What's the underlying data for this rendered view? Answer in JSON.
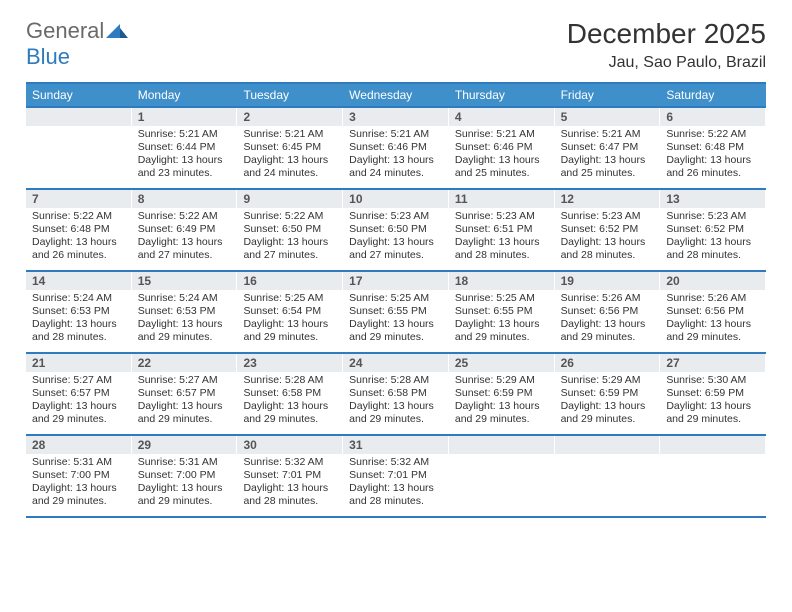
{
  "brand": {
    "general": "General",
    "blue": "Blue"
  },
  "title": "December 2025",
  "location": "Jau, Sao Paulo, Brazil",
  "colors": {
    "accent": "#2f7bbf",
    "header_bg": "#3f8fca",
    "band_bg": "#e9ecef",
    "text": "#333333",
    "logo_gray": "#6a6a6a"
  },
  "layout": {
    "cols": 7,
    "rows": 5,
    "start_day_index": 1,
    "cell_font_size_pt": 8,
    "daynum_font_size_pt": 9,
    "header_font_size_pt": 9,
    "title_font_size_pt": 21,
    "location_font_size_pt": 12
  },
  "day_headers": [
    "Sunday",
    "Monday",
    "Tuesday",
    "Wednesday",
    "Thursday",
    "Friday",
    "Saturday"
  ],
  "weeks": [
    [
      null,
      {
        "n": "1",
        "sunrise": "5:21 AM",
        "sunset": "6:44 PM",
        "daylight": "13 hours and 23 minutes."
      },
      {
        "n": "2",
        "sunrise": "5:21 AM",
        "sunset": "6:45 PM",
        "daylight": "13 hours and 24 minutes."
      },
      {
        "n": "3",
        "sunrise": "5:21 AM",
        "sunset": "6:46 PM",
        "daylight": "13 hours and 24 minutes."
      },
      {
        "n": "4",
        "sunrise": "5:21 AM",
        "sunset": "6:46 PM",
        "daylight": "13 hours and 25 minutes."
      },
      {
        "n": "5",
        "sunrise": "5:21 AM",
        "sunset": "6:47 PM",
        "daylight": "13 hours and 25 minutes."
      },
      {
        "n": "6",
        "sunrise": "5:22 AM",
        "sunset": "6:48 PM",
        "daylight": "13 hours and 26 minutes."
      }
    ],
    [
      {
        "n": "7",
        "sunrise": "5:22 AM",
        "sunset": "6:48 PM",
        "daylight": "13 hours and 26 minutes."
      },
      {
        "n": "8",
        "sunrise": "5:22 AM",
        "sunset": "6:49 PM",
        "daylight": "13 hours and 27 minutes."
      },
      {
        "n": "9",
        "sunrise": "5:22 AM",
        "sunset": "6:50 PM",
        "daylight": "13 hours and 27 minutes."
      },
      {
        "n": "10",
        "sunrise": "5:23 AM",
        "sunset": "6:50 PM",
        "daylight": "13 hours and 27 minutes."
      },
      {
        "n": "11",
        "sunrise": "5:23 AM",
        "sunset": "6:51 PM",
        "daylight": "13 hours and 28 minutes."
      },
      {
        "n": "12",
        "sunrise": "5:23 AM",
        "sunset": "6:52 PM",
        "daylight": "13 hours and 28 minutes."
      },
      {
        "n": "13",
        "sunrise": "5:23 AM",
        "sunset": "6:52 PM",
        "daylight": "13 hours and 28 minutes."
      }
    ],
    [
      {
        "n": "14",
        "sunrise": "5:24 AM",
        "sunset": "6:53 PM",
        "daylight": "13 hours and 28 minutes."
      },
      {
        "n": "15",
        "sunrise": "5:24 AM",
        "sunset": "6:53 PM",
        "daylight": "13 hours and 29 minutes."
      },
      {
        "n": "16",
        "sunrise": "5:25 AM",
        "sunset": "6:54 PM",
        "daylight": "13 hours and 29 minutes."
      },
      {
        "n": "17",
        "sunrise": "5:25 AM",
        "sunset": "6:55 PM",
        "daylight": "13 hours and 29 minutes."
      },
      {
        "n": "18",
        "sunrise": "5:25 AM",
        "sunset": "6:55 PM",
        "daylight": "13 hours and 29 minutes."
      },
      {
        "n": "19",
        "sunrise": "5:26 AM",
        "sunset": "6:56 PM",
        "daylight": "13 hours and 29 minutes."
      },
      {
        "n": "20",
        "sunrise": "5:26 AM",
        "sunset": "6:56 PM",
        "daylight": "13 hours and 29 minutes."
      }
    ],
    [
      {
        "n": "21",
        "sunrise": "5:27 AM",
        "sunset": "6:57 PM",
        "daylight": "13 hours and 29 minutes."
      },
      {
        "n": "22",
        "sunrise": "5:27 AM",
        "sunset": "6:57 PM",
        "daylight": "13 hours and 29 minutes."
      },
      {
        "n": "23",
        "sunrise": "5:28 AM",
        "sunset": "6:58 PM",
        "daylight": "13 hours and 29 minutes."
      },
      {
        "n": "24",
        "sunrise": "5:28 AM",
        "sunset": "6:58 PM",
        "daylight": "13 hours and 29 minutes."
      },
      {
        "n": "25",
        "sunrise": "5:29 AM",
        "sunset": "6:59 PM",
        "daylight": "13 hours and 29 minutes."
      },
      {
        "n": "26",
        "sunrise": "5:29 AM",
        "sunset": "6:59 PM",
        "daylight": "13 hours and 29 minutes."
      },
      {
        "n": "27",
        "sunrise": "5:30 AM",
        "sunset": "6:59 PM",
        "daylight": "13 hours and 29 minutes."
      }
    ],
    [
      {
        "n": "28",
        "sunrise": "5:31 AM",
        "sunset": "7:00 PM",
        "daylight": "13 hours and 29 minutes."
      },
      {
        "n": "29",
        "sunrise": "5:31 AM",
        "sunset": "7:00 PM",
        "daylight": "13 hours and 29 minutes."
      },
      {
        "n": "30",
        "sunrise": "5:32 AM",
        "sunset": "7:01 PM",
        "daylight": "13 hours and 28 minutes."
      },
      {
        "n": "31",
        "sunrise": "5:32 AM",
        "sunset": "7:01 PM",
        "daylight": "13 hours and 28 minutes."
      },
      null,
      null,
      null
    ]
  ],
  "labels": {
    "sunrise": "Sunrise:",
    "sunset": "Sunset:",
    "daylight": "Daylight:"
  }
}
